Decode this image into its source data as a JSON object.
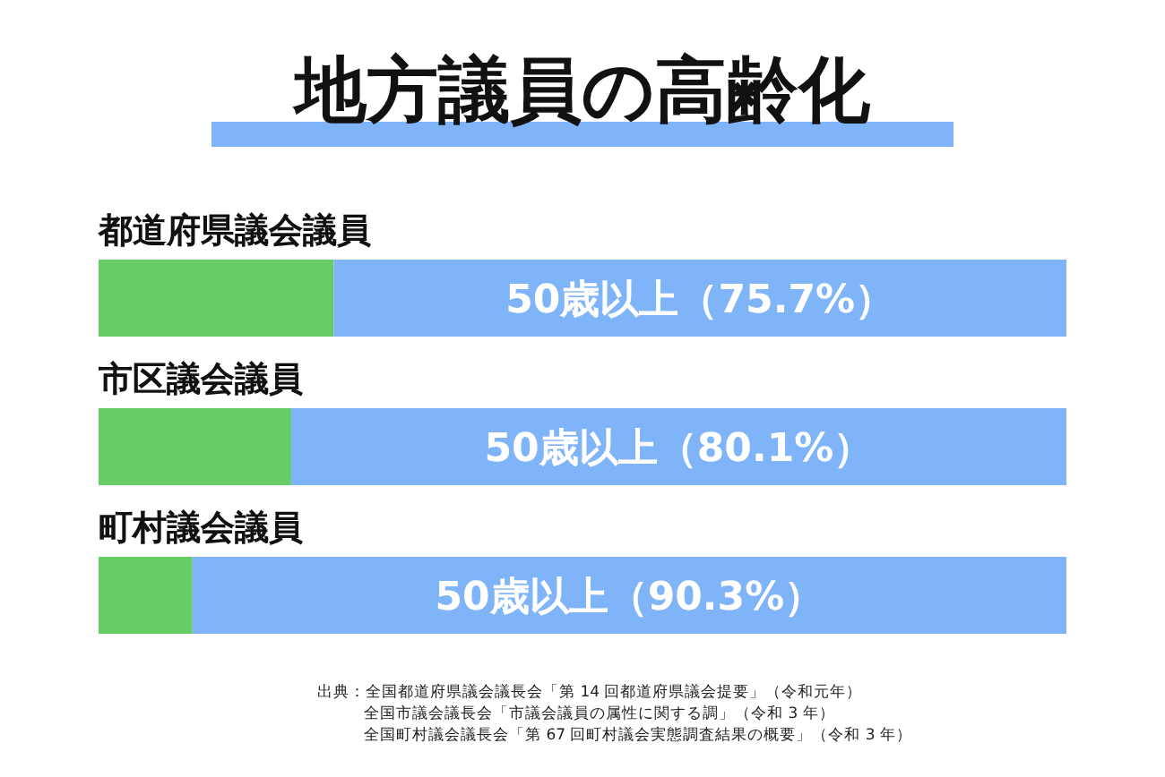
{
  "chart_data": {
    "type": "bar",
    "orientation": "horizontal",
    "stacked": true,
    "title": "地方議員の高齢化",
    "categories": [
      "都道府県議会議員",
      "市区議会議員",
      "町村議会議員"
    ],
    "xlim": [
      0,
      100
    ],
    "series": [
      {
        "color": "#66cc66",
        "values": [
          24.3,
          19.9,
          9.7
        ]
      },
      {
        "color": "#80b4f8",
        "values": [
          75.7,
          80.1,
          90.3
        ],
        "value_labels": [
          "50歳以上（75.7%）",
          "50歳以上（80.1%）",
          "50歳以上（90.3%）"
        ]
      }
    ],
    "annotations": [
      "出典：全国都道府県議会議長会「第 14 回都道府県議会提要」（令和元年）",
      "全国市議会議長会「市議会議員の属性に関する調」（令和 3 年）",
      "全国町村議会議長会「第 67 回町村議会実態調査結果の概要」（令和 3 年）"
    ]
  }
}
